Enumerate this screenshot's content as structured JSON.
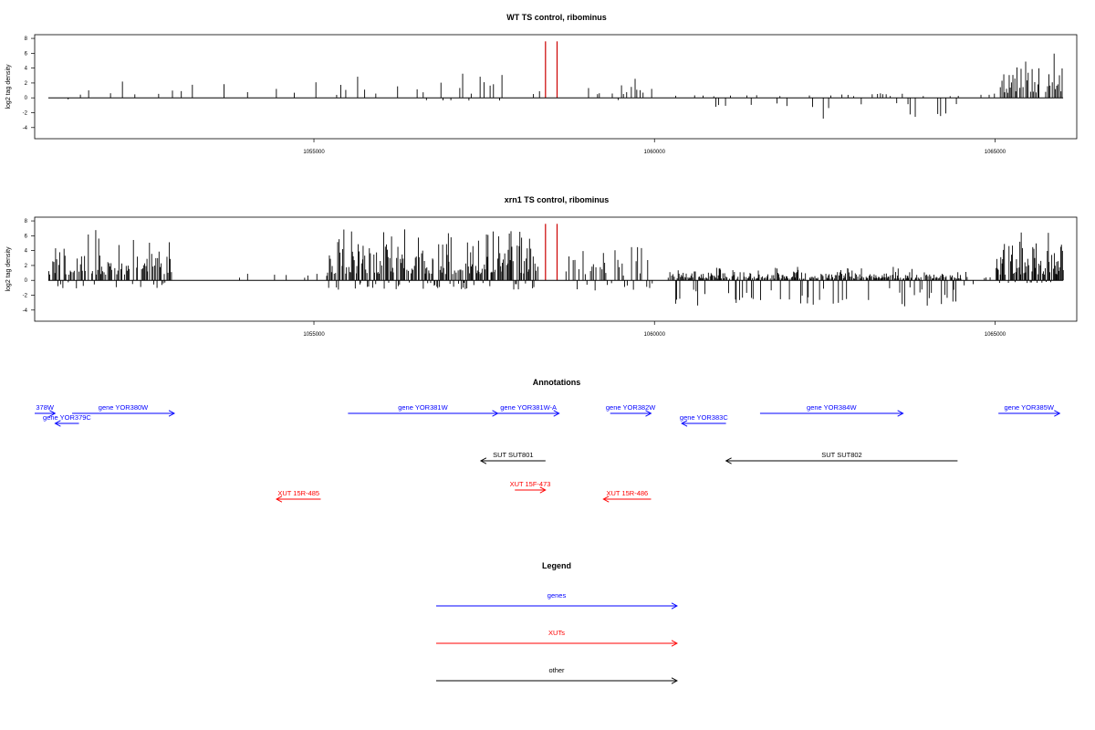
{
  "colors": {
    "gene": "#0000ff",
    "xut": "#ff0000",
    "other": "#000000",
    "highlight": "#cc0000",
    "trace": "#000000"
  },
  "chart_data": [
    {
      "type": "bar",
      "title": "WT TS control, ribominus",
      "ylabel": "log2 tag density",
      "ylim": [
        -5.5,
        8.5
      ],
      "xlim": [
        1050900,
        1066200
      ],
      "yticks": [
        8,
        6,
        4,
        2,
        0,
        -2,
        -4
      ],
      "xticks": [
        1055000,
        1060000,
        1065000
      ],
      "highlight_x": [
        1058400,
        1058570
      ],
      "highlight_value": 7.6,
      "profile": [
        {
          "from": 1051100,
          "to": 1055500,
          "step": 45,
          "pos": 1.2,
          "neg": -0.2,
          "density": 0.24
        },
        {
          "from": 1055500,
          "to": 1058300,
          "step": 45,
          "pos": 1.9,
          "neg": -0.3,
          "density": 0.35
        },
        {
          "from": 1058700,
          "to": 1060000,
          "step": 40,
          "pos": 1.7,
          "neg": -0.3,
          "density": 0.45
        },
        {
          "from": 1060300,
          "to": 1064900,
          "step": 40,
          "pos": 0.3,
          "neg": -2.0,
          "density": 0.55
        },
        {
          "from": 1064900,
          "to": 1065100,
          "step": 40,
          "pos": 1.2,
          "neg": -0.2,
          "density": 0.25
        },
        {
          "from": 1065100,
          "to": 1066000,
          "step": 20,
          "pos": 2.6,
          "neg": -0.1,
          "density": 0.9
        }
      ]
    },
    {
      "type": "bar",
      "title": "xrn1 TS control, ribominus",
      "ylabel": "log2 tag density",
      "ylim": [
        -5.5,
        8.5
      ],
      "xlim": [
        1050900,
        1066200
      ],
      "yticks": [
        8,
        6,
        4,
        2,
        0,
        -2,
        -4
      ],
      "xticks": [
        1055000,
        1060000,
        1065000
      ],
      "highlight_x": [
        1058400,
        1058570
      ],
      "highlight_value": 7.6,
      "profile": [
        {
          "from": 1051100,
          "to": 1052900,
          "step": 15,
          "pos": 3.0,
          "neg": -0.8,
          "density": 0.8
        },
        {
          "from": 1052900,
          "to": 1055200,
          "step": 40,
          "pos": 1.0,
          "neg": -0.6,
          "density": 0.25
        },
        {
          "from": 1055200,
          "to": 1058300,
          "step": 13,
          "pos": 3.4,
          "neg": -0.9,
          "density": 0.85
        },
        {
          "from": 1058700,
          "to": 1060000,
          "step": 20,
          "pos": 2.3,
          "neg": -1.0,
          "density": 0.6
        },
        {
          "from": 1060200,
          "to": 1064500,
          "step": 12,
          "pos": 0.8,
          "neg": -2.6,
          "density": 0.85
        },
        {
          "from": 1064500,
          "to": 1065000,
          "step": 30,
          "pos": 0.8,
          "neg": -0.5,
          "density": 0.35
        },
        {
          "from": 1065000,
          "to": 1066000,
          "step": 12,
          "pos": 3.0,
          "neg": -0.3,
          "density": 0.9
        }
      ]
    }
  ],
  "annotations": {
    "title": "Annotations",
    "items": [
      {
        "label": "378W",
        "start": 1050900,
        "end": 1051200,
        "strand": "+",
        "row": 0,
        "kind": "gene"
      },
      {
        "label": "gene YOR379C",
        "start": 1051200,
        "end": 1051550,
        "strand": "-",
        "row": 1,
        "kind": "gene"
      },
      {
        "label": "gene YOR380W",
        "start": 1051450,
        "end": 1052950,
        "strand": "+",
        "row": 0,
        "kind": "gene"
      },
      {
        "label": "gene YOR381W",
        "start": 1055500,
        "end": 1057700,
        "strand": "+",
        "row": 0,
        "kind": "gene"
      },
      {
        "label": "gene YOR381W-A",
        "start": 1057700,
        "end": 1058600,
        "strand": "+",
        "row": 0,
        "kind": "gene"
      },
      {
        "label": "gene YOR382W",
        "start": 1059350,
        "end": 1059950,
        "strand": "+",
        "row": 0,
        "kind": "gene"
      },
      {
        "label": "gene YOR383C",
        "start": 1060400,
        "end": 1061050,
        "strand": "-",
        "row": 1,
        "kind": "gene"
      },
      {
        "label": "gene YOR384W",
        "start": 1061550,
        "end": 1063650,
        "strand": "+",
        "row": 0,
        "kind": "gene"
      },
      {
        "label": "gene YOR385W",
        "start": 1065050,
        "end": 1065950,
        "strand": "+",
        "row": 0,
        "kind": "gene"
      },
      {
        "label": "SUT SUT801",
        "start": 1057450,
        "end": 1058400,
        "strand": "-",
        "row": 3,
        "kind": "other"
      },
      {
        "label": "SUT SUT802",
        "start": 1061050,
        "end": 1064450,
        "strand": "-",
        "row": 3,
        "kind": "other"
      },
      {
        "label": "XUT 15F-473",
        "start": 1057950,
        "end": 1058400,
        "strand": "+",
        "row": 4,
        "kind": "xut"
      },
      {
        "label": "XUT 15R-485",
        "start": 1054450,
        "end": 1055100,
        "strand": "-",
        "row": 5,
        "kind": "xut"
      },
      {
        "label": "XUT 15R-486",
        "start": 1059250,
        "end": 1059950,
        "strand": "-",
        "row": 5,
        "kind": "xut"
      }
    ]
  },
  "legend": {
    "title": "Legend",
    "items": [
      {
        "label": "genes",
        "kind": "gene"
      },
      {
        "label": "XUTs",
        "kind": "xut"
      },
      {
        "label": "other",
        "kind": "other"
      }
    ]
  }
}
